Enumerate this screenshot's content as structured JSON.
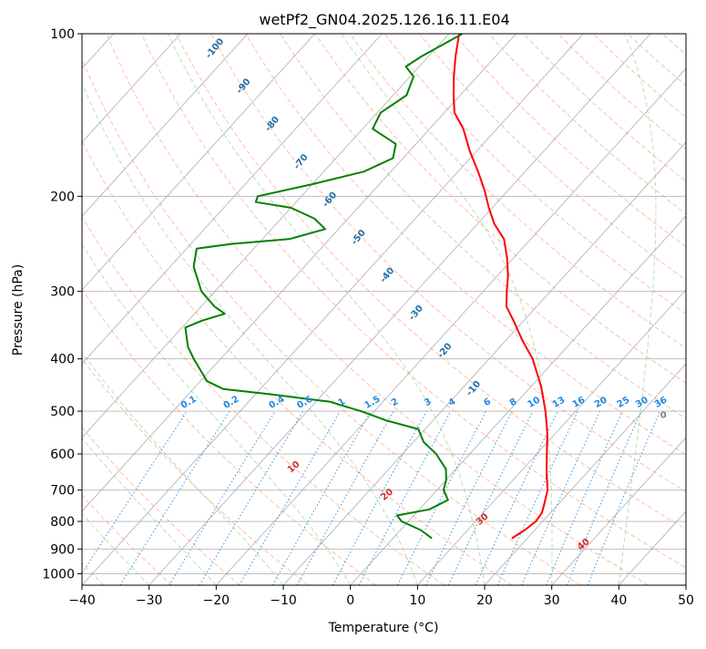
{
  "chart_data": {
    "type": "skew-t",
    "title": "wetPf2_GN04.2025.126.16.11.E04",
    "xlabel": "Temperature (°C)",
    "ylabel": "Pressure (hPa)",
    "xlim": [
      -40,
      50
    ],
    "ylim": [
      1050,
      100
    ],
    "y_scale": "log",
    "grid": true,
    "x_ticks": [
      "−40",
      "−30",
      "−20",
      "−10",
      "0",
      "10",
      "20",
      "30",
      "40",
      "50"
    ],
    "x_tick_values": [
      -40,
      -30,
      -20,
      -10,
      0,
      10,
      20,
      30,
      40,
      50
    ],
    "y_ticks": [
      "100",
      "200",
      "300",
      "400",
      "500",
      "600",
      "700",
      "800",
      "900",
      "1000"
    ],
    "y_tick_values": [
      100,
      200,
      300,
      400,
      500,
      600,
      700,
      800,
      900,
      1000
    ],
    "series": [
      {
        "kind": "temperature",
        "color": "#ff0000",
        "points": [
          {
            "p": 860,
            "t": 17.7
          },
          {
            "p": 830,
            "t": 18.5
          },
          {
            "p": 800,
            "t": 19.0
          },
          {
            "p": 770,
            "t": 18.7
          },
          {
            "p": 740,
            "t": 17.8
          },
          {
            "p": 700,
            "t": 16.5
          },
          {
            "p": 650,
            "t": 14.0
          },
          {
            "p": 600,
            "t": 11.5
          },
          {
            "p": 550,
            "t": 8.8
          },
          {
            "p": 500,
            "t": 5.5
          },
          {
            "p": 450,
            "t": 1.5
          },
          {
            "p": 400,
            "t": -3.5
          },
          {
            "p": 370,
            "t": -7.5
          },
          {
            "p": 340,
            "t": -11.5
          },
          {
            "p": 320,
            "t": -14.5
          },
          {
            "p": 300,
            "t": -16.5
          },
          {
            "p": 280,
            "t": -18.5
          },
          {
            "p": 260,
            "t": -21.0
          },
          {
            "p": 240,
            "t": -24.0
          },
          {
            "p": 225,
            "t": -27.5
          },
          {
            "p": 210,
            "t": -30.5
          },
          {
            "p": 195,
            "t": -33.5
          },
          {
            "p": 180,
            "t": -37.0
          },
          {
            "p": 165,
            "t": -41.0
          },
          {
            "p": 150,
            "t": -45.0
          },
          {
            "p": 140,
            "t": -48.5
          },
          {
            "p": 130,
            "t": -51.0
          },
          {
            "p": 120,
            "t": -53.5
          },
          {
            "p": 110,
            "t": -56.0
          },
          {
            "p": 100,
            "t": -58.5
          }
        ]
      },
      {
        "kind": "dewpoint",
        "color": "#008000",
        "points": [
          {
            "p": 860,
            "t": 5.8
          },
          {
            "p": 830,
            "t": 3.0
          },
          {
            "p": 800,
            "t": -1.0
          },
          {
            "p": 780,
            "t": -2.5
          },
          {
            "p": 760,
            "t": 1.5
          },
          {
            "p": 730,
            "t": 3.0
          },
          {
            "p": 700,
            "t": 1.0
          },
          {
            "p": 670,
            "t": 0.0
          },
          {
            "p": 640,
            "t": -1.5
          },
          {
            "p": 600,
            "t": -5.0
          },
          {
            "p": 570,
            "t": -8.5
          },
          {
            "p": 540,
            "t": -11.0
          },
          {
            "p": 520,
            "t": -17.0
          },
          {
            "p": 500,
            "t": -22.0
          },
          {
            "p": 480,
            "t": -28.0
          },
          {
            "p": 465,
            "t": -38.0
          },
          {
            "p": 455,
            "t": -45.5
          },
          {
            "p": 440,
            "t": -49.0
          },
          {
            "p": 400,
            "t": -54.0
          },
          {
            "p": 380,
            "t": -56.5
          },
          {
            "p": 350,
            "t": -59.5
          },
          {
            "p": 340,
            "t": -58.0
          },
          {
            "p": 330,
            "t": -55.5
          },
          {
            "p": 320,
            "t": -58.0
          },
          {
            "p": 300,
            "t": -62.0
          },
          {
            "p": 270,
            "t": -66.5
          },
          {
            "p": 250,
            "t": -68.5
          },
          {
            "p": 245,
            "t": -64.0
          },
          {
            "p": 240,
            "t": -56.0
          },
          {
            "p": 230,
            "t": -52.0
          },
          {
            "p": 220,
            "t": -55.0
          },
          {
            "p": 210,
            "t": -60.0
          },
          {
            "p": 205,
            "t": -66.0
          },
          {
            "p": 200,
            "t": -66.5
          },
          {
            "p": 190,
            "t": -60.0
          },
          {
            "p": 180,
            "t": -54.0
          },
          {
            "p": 170,
            "t": -51.5
          },
          {
            "p": 160,
            "t": -53.0
          },
          {
            "p": 150,
            "t": -58.5
          },
          {
            "p": 140,
            "t": -59.5
          },
          {
            "p": 130,
            "t": -58.0
          },
          {
            "p": 120,
            "t": -59.5
          },
          {
            "p": 115,
            "t": -62.0
          },
          {
            "p": 110,
            "t": -61.0
          },
          {
            "p": 100,
            "t": -58.0
          }
        ]
      }
    ],
    "mixing_ratio_labels": [
      "0.1",
      "0.2",
      "0.4",
      "0.6",
      "1",
      "1.5",
      "2",
      "3",
      "4",
      "6",
      "8",
      "10",
      "13",
      "16",
      "20",
      "25",
      "30",
      "36"
    ],
    "mixing_ratio_values": [
      0.1,
      0.2,
      0.4,
      0.6,
      1,
      1.5,
      2,
      3,
      4,
      6,
      8,
      10,
      13,
      16,
      20,
      25,
      30,
      36
    ],
    "dry_adiabat_labels": [
      "10",
      "20",
      "30",
      "40"
    ],
    "dry_adiabat_values": [
      10,
      20,
      30,
      40
    ],
    "wetbulb_labels": [
      "-100",
      "-90",
      "-80",
      "-70",
      "-60",
      "-50",
      "-40",
      "-30",
      "-20",
      "-10"
    ],
    "wetbulb_values": [
      -100,
      -90,
      -80,
      -70,
      -60,
      -50,
      -40,
      -30,
      -20,
      -10
    ],
    "moist_label": "0"
  },
  "colors": {
    "temperature": "#ff0000",
    "dewpoint": "#008000",
    "mixing_ratio": "#1e88e5",
    "dry_adiabat": "#ff8a65",
    "moist_adiabat": "#66bb6a",
    "isotherm": "#9e9e9e"
  }
}
